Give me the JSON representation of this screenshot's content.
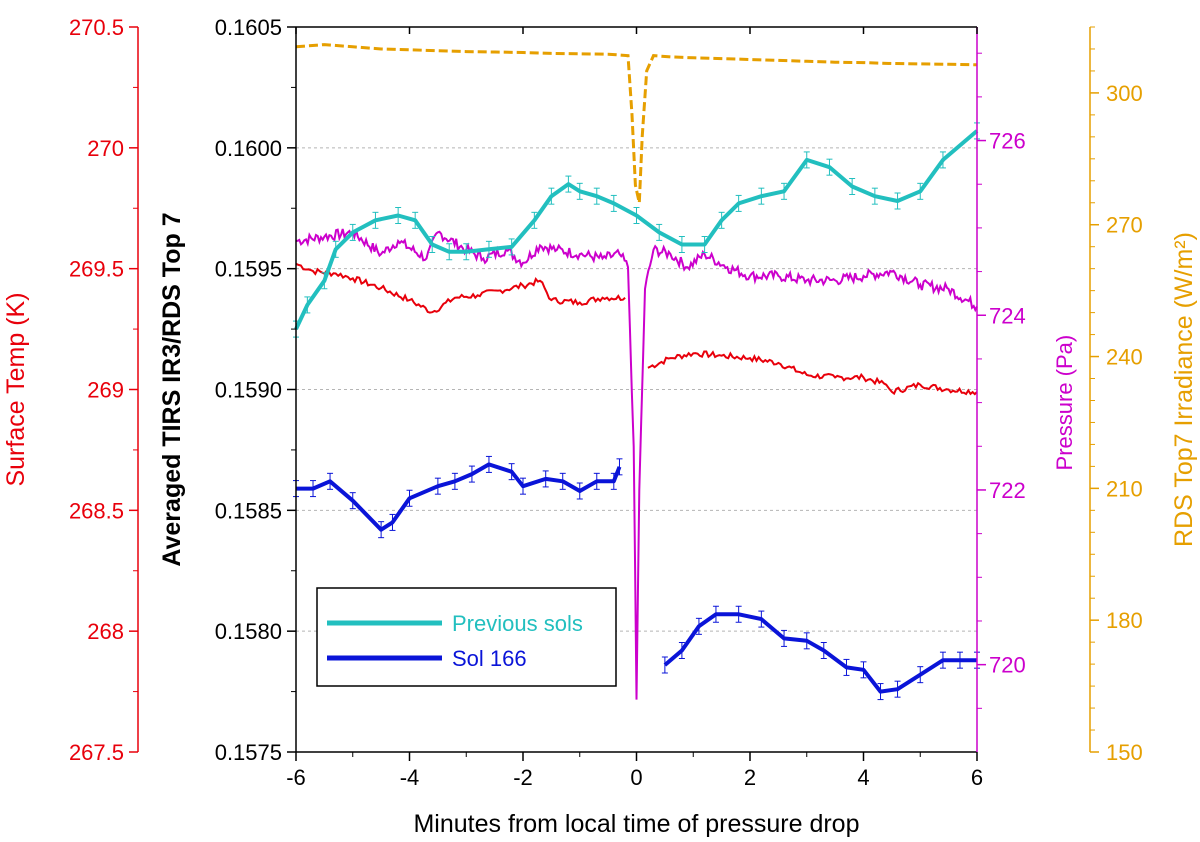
{
  "chart_data": {
    "type": "line",
    "x_axis": {
      "label": "Minutes from local time of pressure drop",
      "range": [
        -6,
        6
      ],
      "ticks": [
        "-6",
        "-4",
        "-2",
        "0",
        "2",
        "4",
        "6"
      ]
    },
    "y_axes": {
      "left_primary": {
        "label": "Averaged TIRS IR3/RDS Top 7",
        "color": "#000000",
        "range": [
          0.1575,
          0.1605
        ],
        "ticks": [
          "0.1575",
          "0.1580",
          "0.1585",
          "0.1590",
          "0.1595",
          "0.1600",
          "0.1605"
        ]
      },
      "left_surface_temp": {
        "label": "Surface Temp (K)",
        "color": "#e8000b",
        "range": [
          267.5,
          270.5
        ],
        "ticks": [
          "267.5",
          "268",
          "268.5",
          "269",
          "269.5",
          "270",
          "270.5"
        ]
      },
      "right_pressure": {
        "label": "Pressure (Pa)",
        "color": "#cc00cc",
        "range": [
          719.0,
          727.3
        ],
        "ticks": [
          "720",
          "722",
          "724",
          "726"
        ]
      },
      "right_irradiance": {
        "label": "RDS Top7 Irradiance (W/m²)",
        "color": "#e69f00",
        "range": [
          150,
          315
        ],
        "ticks": [
          "150",
          "180",
          "210",
          "240",
          "270",
          "300"
        ]
      }
    },
    "grid": "horizontal dashed at primary y ticks",
    "legend": {
      "placement": "lower-left",
      "entries": [
        {
          "label": "Previous sols",
          "color": "#22bfbf"
        },
        {
          "label": "Sol 166",
          "color": "#0a14d8"
        }
      ]
    },
    "series": [
      {
        "name": "Previous sols",
        "axis": "left_primary",
        "color": "#22bfbf",
        "error_bars": true,
        "points": [
          [
            -6.0,
            0.15925
          ],
          [
            -5.8,
            0.15935
          ],
          [
            -5.5,
            0.15945
          ],
          [
            -5.3,
            0.15958
          ],
          [
            -5.0,
            0.15965
          ],
          [
            -4.6,
            0.1597
          ],
          [
            -4.2,
            0.15972
          ],
          [
            -3.9,
            0.1597
          ],
          [
            -3.6,
            0.1596
          ],
          [
            -3.3,
            0.15957
          ],
          [
            -3.0,
            0.15957
          ],
          [
            -2.6,
            0.15958
          ],
          [
            -2.2,
            0.15959
          ],
          [
            -1.8,
            0.1597
          ],
          [
            -1.5,
            0.1598
          ],
          [
            -1.2,
            0.15985
          ],
          [
            -1.0,
            0.15982
          ],
          [
            -0.7,
            0.1598
          ],
          [
            -0.4,
            0.15977
          ],
          [
            0.0,
            0.15972
          ],
          [
            0.4,
            0.15965
          ],
          [
            0.8,
            0.1596
          ],
          [
            1.2,
            0.1596
          ],
          [
            1.5,
            0.1597
          ],
          [
            1.8,
            0.15977
          ],
          [
            2.2,
            0.1598
          ],
          [
            2.6,
            0.15982
          ],
          [
            3.0,
            0.15995
          ],
          [
            3.4,
            0.15992
          ],
          [
            3.8,
            0.15984
          ],
          [
            4.2,
            0.1598
          ],
          [
            4.6,
            0.15978
          ],
          [
            5.0,
            0.15982
          ],
          [
            5.4,
            0.15995
          ],
          [
            6.0,
            0.16007
          ]
        ]
      },
      {
        "name": "Sol 166",
        "axis": "left_primary",
        "color": "#0a14d8",
        "error_bars": true,
        "segments": [
          [
            [
              -6.0,
              0.15859
            ],
            [
              -5.7,
              0.15859
            ],
            [
              -5.4,
              0.15862
            ],
            [
              -5.0,
              0.15854
            ],
            [
              -4.5,
              0.15842
            ],
            [
              -4.3,
              0.15845
            ],
            [
              -4.0,
              0.15855
            ],
            [
              -3.5,
              0.1586
            ],
            [
              -3.2,
              0.15862
            ],
            [
              -2.9,
              0.15865
            ],
            [
              -2.6,
              0.15869
            ],
            [
              -2.2,
              0.15866
            ],
            [
              -2.0,
              0.1586
            ],
            [
              -1.6,
              0.15863
            ],
            [
              -1.3,
              0.15862
            ],
            [
              -1.0,
              0.15858
            ],
            [
              -0.7,
              0.15862
            ],
            [
              -0.4,
              0.15862
            ],
            [
              -0.3,
              0.15868
            ]
          ],
          [
            [
              0.5,
              0.15786
            ],
            [
              0.8,
              0.15792
            ],
            [
              1.1,
              0.15802
            ],
            [
              1.4,
              0.15807
            ],
            [
              1.8,
              0.15807
            ],
            [
              2.2,
              0.15805
            ],
            [
              2.6,
              0.15797
            ],
            [
              3.0,
              0.15796
            ],
            [
              3.3,
              0.15792
            ],
            [
              3.7,
              0.15785
            ],
            [
              4.0,
              0.15784
            ],
            [
              4.3,
              0.15775
            ],
            [
              4.6,
              0.15776
            ],
            [
              5.0,
              0.15782
            ],
            [
              5.4,
              0.15788
            ],
            [
              5.7,
              0.15788
            ],
            [
              6.0,
              0.15788
            ]
          ]
        ]
      },
      {
        "name": "Surface Temp (K)",
        "axis": "left_surface_temp",
        "color": "#e8000b",
        "segments": [
          [
            [
              -6.0,
              269.52
            ],
            [
              -5.7,
              269.49
            ],
            [
              -5.3,
              269.48
            ],
            [
              -5.0,
              269.46
            ],
            [
              -4.5,
              269.42
            ],
            [
              -4.0,
              269.37
            ],
            [
              -3.6,
              269.32
            ],
            [
              -3.2,
              269.38
            ],
            [
              -2.8,
              269.39
            ],
            [
              -2.4,
              269.41
            ],
            [
              -2.0,
              269.43
            ],
            [
              -1.7,
              269.45
            ],
            [
              -1.5,
              269.37
            ],
            [
              -1.0,
              269.36
            ],
            [
              -0.6,
              269.38
            ],
            [
              -0.2,
              269.38
            ]
          ],
          [
            [
              0.2,
              269.09
            ],
            [
              0.6,
              269.13
            ],
            [
              1.0,
              269.15
            ],
            [
              1.5,
              269.14
            ],
            [
              2.0,
              269.13
            ],
            [
              2.5,
              269.11
            ],
            [
              3.0,
              269.06
            ],
            [
              3.5,
              269.05
            ],
            [
              4.0,
              269.05
            ],
            [
              4.4,
              269.02
            ],
            [
              4.5,
              268.99
            ],
            [
              5.0,
              269.02
            ],
            [
              5.5,
              269.0
            ],
            [
              6.0,
              268.99
            ]
          ]
        ]
      },
      {
        "name": "Pressure (Pa)",
        "axis": "right_pressure",
        "color": "#cc00cc",
        "points": [
          [
            -6.0,
            724.85
          ],
          [
            -5.5,
            724.9
          ],
          [
            -5.0,
            724.95
          ],
          [
            -4.5,
            724.7
          ],
          [
            -4.2,
            724.85
          ],
          [
            -3.7,
            724.65
          ],
          [
            -3.5,
            724.95
          ],
          [
            -3.0,
            724.75
          ],
          [
            -2.7,
            724.65
          ],
          [
            -2.3,
            724.75
          ],
          [
            -2.0,
            724.6
          ],
          [
            -1.7,
            724.8
          ],
          [
            -1.4,
            724.75
          ],
          [
            -1.0,
            724.7
          ],
          [
            -0.6,
            724.65
          ],
          [
            -0.3,
            724.7
          ],
          [
            -0.15,
            724.55
          ],
          [
            -0.05,
            722.5
          ],
          [
            0.0,
            719.6
          ],
          [
            0.05,
            722.0
          ],
          [
            0.15,
            724.3
          ],
          [
            0.3,
            724.75
          ],
          [
            0.6,
            724.7
          ],
          [
            0.9,
            724.55
          ],
          [
            1.2,
            724.7
          ],
          [
            1.6,
            724.55
          ],
          [
            2.0,
            724.45
          ],
          [
            2.5,
            724.45
          ],
          [
            3.0,
            724.4
          ],
          [
            3.5,
            724.4
          ],
          [
            4.0,
            724.45
          ],
          [
            4.5,
            724.5
          ],
          [
            5.0,
            724.35
          ],
          [
            5.5,
            724.3
          ],
          [
            6.0,
            724.1
          ]
        ]
      },
      {
        "name": "RDS Top7 Irradiance (W/m²)",
        "axis": "right_irradiance",
        "color": "#e69f00",
        "dashed": true,
        "points": [
          [
            -6.0,
            310.5
          ],
          [
            -5.5,
            311.0
          ],
          [
            -5.0,
            310.5
          ],
          [
            -4.5,
            310.0
          ],
          [
            -4.0,
            309.8
          ],
          [
            -3.5,
            309.6
          ],
          [
            -3.0,
            309.4
          ],
          [
            -2.5,
            309.3
          ],
          [
            -2.0,
            309.2
          ],
          [
            -1.5,
            309.0
          ],
          [
            -1.0,
            308.9
          ],
          [
            -0.5,
            308.8
          ],
          [
            -0.15,
            308.5
          ],
          [
            -0.08,
            295.0
          ],
          [
            -0.02,
            279.0
          ],
          [
            0.05,
            275.0
          ],
          [
            0.1,
            290.0
          ],
          [
            0.18,
            305.0
          ],
          [
            0.3,
            308.5
          ],
          [
            0.6,
            308.2
          ],
          [
            1.0,
            308.0
          ],
          [
            1.5,
            307.8
          ],
          [
            2.0,
            307.6
          ],
          [
            2.5,
            307.4
          ],
          [
            3.0,
            307.2
          ],
          [
            3.5,
            307.0
          ],
          [
            4.0,
            306.9
          ],
          [
            4.5,
            306.7
          ],
          [
            5.0,
            306.6
          ],
          [
            5.5,
            306.5
          ],
          [
            6.0,
            306.4
          ]
        ]
      }
    ]
  }
}
